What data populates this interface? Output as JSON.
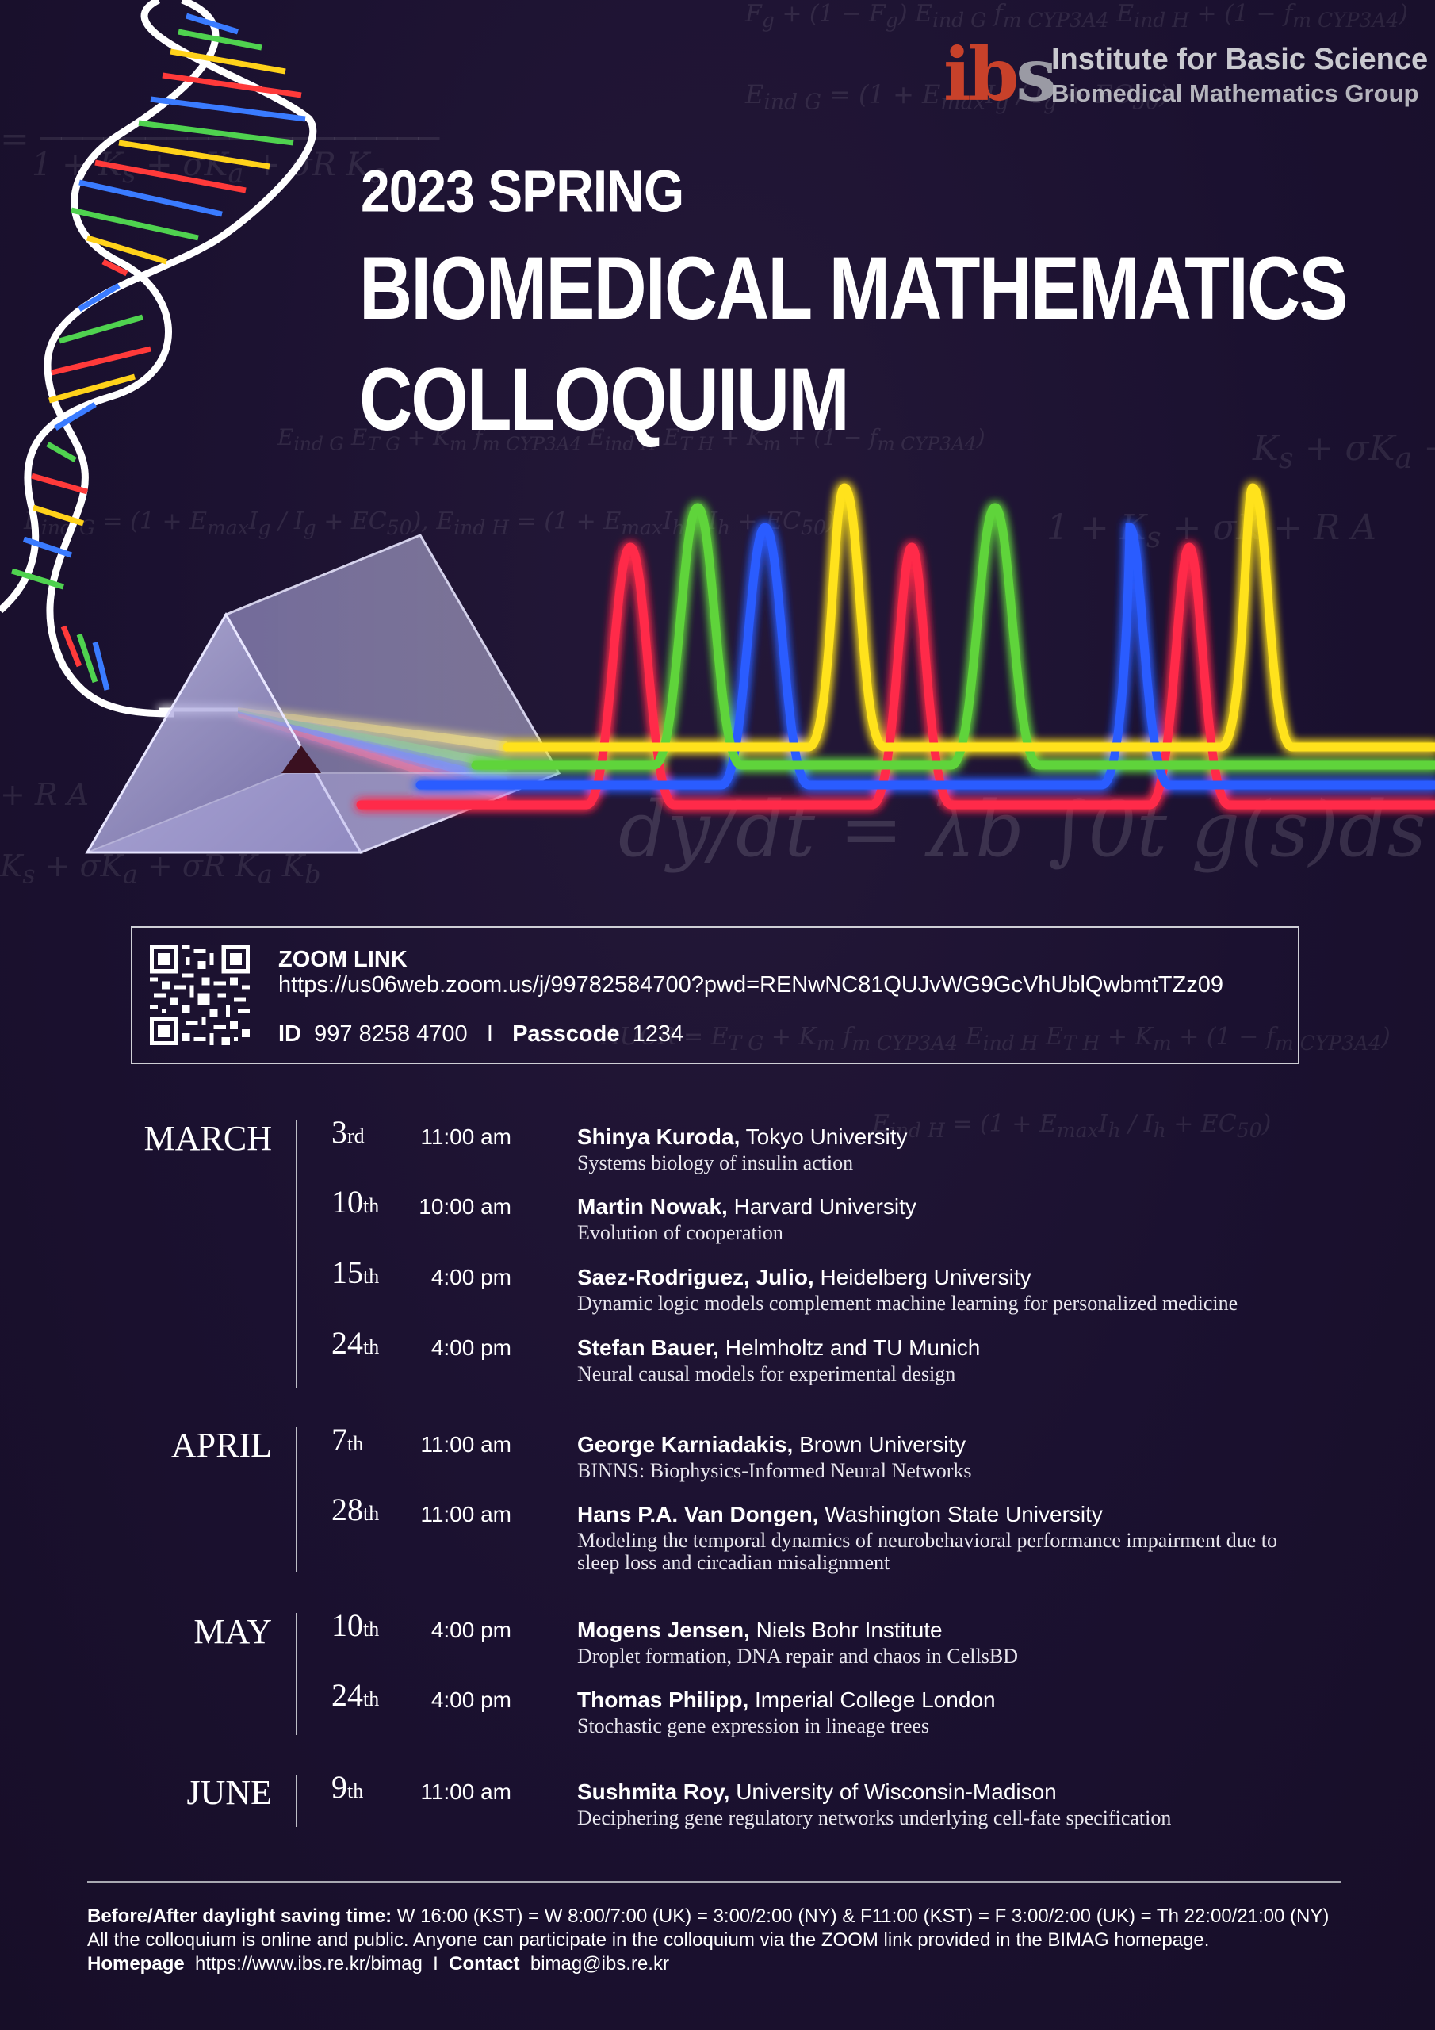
{
  "logo": {
    "mark": "ibs",
    "line1": "Institute for Basic Science",
    "line2": "Biomedical Mathematics Group"
  },
  "header": {
    "season": "2023 SPRING",
    "title_line1": "BIOMEDICAL MATHEMATICS",
    "title_line2": "COLLOQUIUM"
  },
  "background_formulas": {
    "main": "dy/dt = λb ∫0t g(s)ds −"
  },
  "zoom": {
    "label": "ZOOM LINK",
    "url": "https://us06web.zoom.us/j/99782584700?pwd=RENwNC81QUJvWG9GcVhUblQwbmtTZz09",
    "id_label": "ID",
    "id_value": "997 8258 4700",
    "separator": "I",
    "passcode_label": "Passcode",
    "passcode_value": "1234"
  },
  "schedule": [
    {
      "month": "MARCH",
      "events": [
        {
          "day": "3",
          "suffix": "rd",
          "time": "11:00 am",
          "speaker": "Shinya Kuroda,",
          "affiliation": "Tokyo University",
          "talk": "Systems biology of insulin action"
        },
        {
          "day": "10",
          "suffix": "th",
          "time": "10:00 am",
          "speaker": "Martin Nowak,",
          "affiliation": "Harvard University",
          "talk": "Evolution of cooperation"
        },
        {
          "day": "15",
          "suffix": "th",
          "time": "4:00 pm",
          "speaker": "Saez-Rodriguez, Julio,",
          "affiliation": "Heidelberg University",
          "talk": "Dynamic logic models complement machine learning for personalized medicine"
        },
        {
          "day": "24",
          "suffix": "th",
          "time": "4:00 pm",
          "speaker": "Stefan Bauer,",
          "affiliation": "Helmholtz and TU Munich",
          "talk": "Neural causal models for experimental design"
        }
      ]
    },
    {
      "month": "APRIL",
      "events": [
        {
          "day": "7",
          "suffix": "th",
          "time": "11:00 am",
          "speaker": "George Karniadakis,",
          "affiliation": "Brown University",
          "talk": "BINNS: Biophysics-Informed Neural Networks"
        },
        {
          "day": "28",
          "suffix": "th",
          "time": "11:00 am",
          "speaker": "Hans P.A. Van Dongen,",
          "affiliation": "Washington State University",
          "talk": "Modeling the temporal dynamics of neurobehavioral performance impairment due to sleep loss and circadian misalignment"
        }
      ]
    },
    {
      "month": "MAY",
      "events": [
        {
          "day": "10",
          "suffix": "th",
          "time": "4:00 pm",
          "speaker": "Mogens Jensen,",
          "affiliation": "Niels Bohr Institute",
          "talk": "Droplet formation, DNA repair and chaos in CellsBD"
        },
        {
          "day": "24",
          "suffix": "th",
          "time": "4:00 pm",
          "speaker": "Thomas Philipp,",
          "affiliation": "Imperial College London",
          "talk": "Stochastic gene expression in lineage trees"
        }
      ]
    },
    {
      "month": "JUNE",
      "events": [
        {
          "day": "9",
          "suffix": "th",
          "time": "11:00 am",
          "speaker": "Sushmita Roy,",
          "affiliation": "University of Wisconsin-Madison",
          "talk": "Deciphering gene regulatory networks underlying cell-fate specification"
        }
      ]
    }
  ],
  "footer": {
    "dst_label": "Before/After daylight saving time:",
    "dst_text": "W 16:00 (KST) = W 8:00/7:00 (UK) = 3:00/2:00 (NY) & F11:00 (KST) = F 3:00/2:00 (UK) = Th 22:00/21:00 (NY)",
    "public_text": "All the colloquium is online and public. Anyone can participate in the colloquium via the ZOOM link provided in the BIMAG homepage.",
    "homepage_label": "Homepage",
    "homepage_url": "https://www.ibs.re.kr/bimag",
    "separator": "I",
    "contact_label": "Contact",
    "contact_email": "bimag@ibs.re.kr"
  },
  "colors": {
    "background": "#1c1230",
    "wave_red": "#ff2a4a",
    "wave_green": "#5fd43a",
    "wave_blue": "#2a5cff",
    "wave_yellow": "#ffe21a",
    "logo_red": "#c8412a"
  }
}
